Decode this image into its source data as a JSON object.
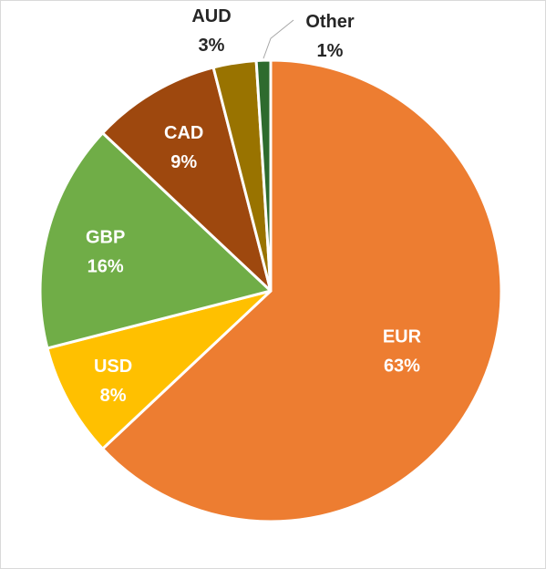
{
  "chart_data": {
    "type": "pie",
    "title": "",
    "legend": "none",
    "slices": [
      {
        "category": "EUR",
        "value": 63,
        "value_label": "63%",
        "color": "#ED7D31",
        "label_color": "#ffffff"
      },
      {
        "category": "USD",
        "value": 8,
        "value_label": "8%",
        "color": "#FFC000",
        "label_color": "#ffffff"
      },
      {
        "category": "GBP",
        "value": 16,
        "value_label": "16%",
        "color": "#70AD47",
        "label_color": "#ffffff"
      },
      {
        "category": "CAD",
        "value": 9,
        "value_label": "9%",
        "color": "#9E480E",
        "label_color": "#ffffff"
      },
      {
        "category": "AUD",
        "value": 3,
        "value_label": "3%",
        "color": "#997300",
        "label_color": "#262626"
      },
      {
        "category": "Other",
        "value": 1,
        "value_label": "1%",
        "color": "#2E6B2E",
        "label_color": "#262626"
      }
    ]
  }
}
